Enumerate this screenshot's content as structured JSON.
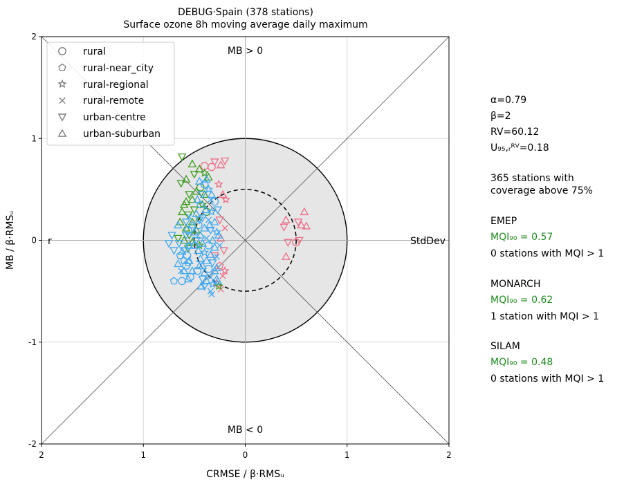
{
  "chart_data": {
    "type": "scatter",
    "title": "DEBUG·Spain (378 stations)",
    "subtitle": "Surface ozone 8h moving average daily maximum",
    "xlabel": "CRMSE / β·RMSᵤ",
    "ylabel": "MB / β·RMSᵤ",
    "xlim": [
      -2,
      2
    ],
    "ylim": [
      -2,
      2
    ],
    "x_ticks": [
      "2",
      "1",
      "0",
      "1",
      "2"
    ],
    "y_ticks": [
      "2",
      "1",
      "0",
      "-1",
      "-2"
    ],
    "grid": true,
    "annotations": {
      "top": "MB > 0",
      "bottom": "MB < 0",
      "left": "r",
      "right": "StdDev"
    },
    "target_circle_radius": 1,
    "dashed_circle_radius": 0.5,
    "legend_position": "upper left",
    "legend": [
      {
        "label": "rural",
        "marker": "circle"
      },
      {
        "label": "rural-near_city",
        "marker": "pentagon"
      },
      {
        "label": "rural-regional",
        "marker": "star"
      },
      {
        "label": "rural-remote",
        "marker": "x"
      },
      {
        "label": "urban-centre",
        "marker": "triangle-down"
      },
      {
        "label": "urban-suburban",
        "marker": "triangle-up"
      }
    ],
    "series": [
      {
        "name": "EMEP",
        "color": "#ec6e86",
        "points": [
          {
            "x": -0.2,
            "y": 0.78,
            "m": "triangle-down"
          },
          {
            "x": -0.24,
            "y": 0.74,
            "m": "triangle-up"
          },
          {
            "x": -0.3,
            "y": 0.77,
            "m": "triangle-down"
          },
          {
            "x": -0.33,
            "y": 0.72,
            "m": "circle"
          },
          {
            "x": -0.4,
            "y": 0.73,
            "m": "circle"
          },
          {
            "x": -0.26,
            "y": 0.55,
            "m": "star"
          },
          {
            "x": -0.22,
            "y": 0.45,
            "m": "triangle-up"
          },
          {
            "x": -0.19,
            "y": 0.4,
            "m": "star"
          },
          {
            "x": -0.25,
            "y": 0.2,
            "m": "triangle-down"
          },
          {
            "x": -0.2,
            "y": 0.12,
            "m": "x"
          },
          {
            "x": -0.24,
            "y": 0.02,
            "m": "triangle-up"
          },
          {
            "x": -0.21,
            "y": -0.1,
            "m": "triangle-down"
          },
          {
            "x": -0.25,
            "y": -0.25,
            "m": "pentagon"
          },
          {
            "x": -0.22,
            "y": -0.35,
            "m": "x"
          },
          {
            "x": -0.28,
            "y": -0.42,
            "m": "triangle-up"
          },
          {
            "x": -0.24,
            "y": -0.48,
            "m": "x"
          },
          {
            "x": -0.2,
            "y": -0.3,
            "m": "star"
          },
          {
            "x": -0.3,
            "y": -0.15,
            "m": "triangle-down"
          },
          {
            "x": 0.4,
            "y": 0.2,
            "m": "triangle-up"
          },
          {
            "x": 0.52,
            "y": 0.18,
            "m": "triangle-down"
          },
          {
            "x": 0.55,
            "y": 0.15,
            "m": "triangle-up"
          },
          {
            "x": 0.58,
            "y": 0.28,
            "m": "triangle-up"
          },
          {
            "x": 0.6,
            "y": 0.14,
            "m": "triangle-up"
          },
          {
            "x": 0.38,
            "y": 0.13,
            "m": "triangle-down"
          },
          {
            "x": 0.53,
            "y": 0.0,
            "m": "triangle-down"
          },
          {
            "x": 0.5,
            "y": -0.02,
            "m": "circle"
          },
          {
            "x": 0.42,
            "y": -0.02,
            "m": "triangle-down"
          },
          {
            "x": 0.4,
            "y": -0.16,
            "m": "triangle-up"
          }
        ]
      },
      {
        "name": "MONARCH",
        "color": "#3a9c1e",
        "points": [
          {
            "x": -0.62,
            "y": 0.82,
            "m": "triangle-down"
          },
          {
            "x": -0.52,
            "y": 0.75,
            "m": "triangle-up"
          },
          {
            "x": -0.45,
            "y": 0.7,
            "m": "triangle-up"
          },
          {
            "x": -0.5,
            "y": 0.65,
            "m": "triangle-down"
          },
          {
            "x": -0.4,
            "y": 0.66,
            "m": "star"
          },
          {
            "x": -0.36,
            "y": 0.62,
            "m": "triangle-up"
          },
          {
            "x": -0.63,
            "y": 0.56,
            "m": "triangle-down"
          },
          {
            "x": -0.58,
            "y": 0.6,
            "m": "triangle-up"
          },
          {
            "x": -0.44,
            "y": 0.52,
            "m": "circle"
          },
          {
            "x": -0.48,
            "y": 0.48,
            "m": "triangle-up"
          },
          {
            "x": -0.55,
            "y": 0.45,
            "m": "triangle-down"
          },
          {
            "x": -0.52,
            "y": 0.4,
            "m": "triangle-up"
          },
          {
            "x": -0.58,
            "y": 0.38,
            "m": "triangle-up"
          },
          {
            "x": -0.6,
            "y": 0.35,
            "m": "triangle-up"
          },
          {
            "x": -0.42,
            "y": 0.35,
            "m": "star"
          },
          {
            "x": -0.5,
            "y": 0.3,
            "m": "triangle-down"
          },
          {
            "x": -0.62,
            "y": 0.28,
            "m": "triangle-up"
          },
          {
            "x": -0.56,
            "y": 0.25,
            "m": "triangle-down"
          },
          {
            "x": -0.46,
            "y": 0.22,
            "m": "x"
          },
          {
            "x": -0.52,
            "y": 0.18,
            "m": "triangle-up"
          },
          {
            "x": -0.64,
            "y": 0.18,
            "m": "triangle-up"
          },
          {
            "x": -0.58,
            "y": 0.12,
            "m": "triangle-up"
          },
          {
            "x": -0.48,
            "y": 0.1,
            "m": "triangle-up"
          },
          {
            "x": -0.55,
            "y": 0.05,
            "m": "triangle-down"
          },
          {
            "x": -0.66,
            "y": 0.02,
            "m": "triangle-down"
          },
          {
            "x": -0.6,
            "y": 0.0,
            "m": "triangle-up"
          },
          {
            "x": -0.52,
            "y": -0.02,
            "m": "triangle-up"
          },
          {
            "x": -0.45,
            "y": -0.05,
            "m": "star"
          },
          {
            "x": -0.56,
            "y": -0.08,
            "m": "triangle-down"
          },
          {
            "x": -0.4,
            "y": 0.45,
            "m": "triangle-up"
          },
          {
            "x": -0.38,
            "y": 0.28,
            "m": "circle"
          },
          {
            "x": -0.26,
            "y": -0.45,
            "m": "star"
          }
        ]
      },
      {
        "name": "SILAM",
        "color": "#3fa8f0",
        "points": [
          {
            "x": -0.45,
            "y": 0.58,
            "m": "triangle-up"
          },
          {
            "x": -0.4,
            "y": 0.55,
            "m": "circle"
          },
          {
            "x": -0.36,
            "y": 0.5,
            "m": "star"
          },
          {
            "x": -0.42,
            "y": 0.45,
            "m": "triangle-down"
          },
          {
            "x": -0.47,
            "y": 0.4,
            "m": "triangle-up"
          },
          {
            "x": -0.34,
            "y": 0.4,
            "m": "x"
          },
          {
            "x": -0.3,
            "y": 0.38,
            "m": "circle"
          },
          {
            "x": -0.44,
            "y": 0.35,
            "m": "pentagon"
          },
          {
            "x": -0.39,
            "y": 0.3,
            "m": "triangle-up"
          },
          {
            "x": -0.33,
            "y": 0.28,
            "m": "star"
          },
          {
            "x": -0.48,
            "y": 0.26,
            "m": "triangle-up"
          },
          {
            "x": -0.42,
            "y": 0.22,
            "m": "triangle-down"
          },
          {
            "x": -0.36,
            "y": 0.2,
            "m": "x"
          },
          {
            "x": -0.3,
            "y": 0.18,
            "m": "triangle-up"
          },
          {
            "x": -0.46,
            "y": 0.15,
            "m": "circle"
          },
          {
            "x": -0.4,
            "y": 0.12,
            "m": "triangle-up"
          },
          {
            "x": -0.34,
            "y": 0.1,
            "m": "triangle-down"
          },
          {
            "x": -0.28,
            "y": 0.08,
            "m": "star"
          },
          {
            "x": -0.5,
            "y": 0.08,
            "m": "triangle-up"
          },
          {
            "x": -0.44,
            "y": 0.05,
            "m": "triangle-up"
          },
          {
            "x": -0.38,
            "y": 0.02,
            "m": "x"
          },
          {
            "x": -0.32,
            "y": 0.0,
            "m": "triangle-up"
          },
          {
            "x": -0.48,
            "y": 0.0,
            "m": "triangle-down"
          },
          {
            "x": -0.42,
            "y": -0.03,
            "m": "triangle-up"
          },
          {
            "x": -0.36,
            "y": -0.05,
            "m": "circle"
          },
          {
            "x": -0.3,
            "y": -0.07,
            "m": "triangle-up"
          },
          {
            "x": -0.55,
            "y": -0.06,
            "m": "triangle-down"
          },
          {
            "x": -0.46,
            "y": -0.1,
            "m": "triangle-up"
          },
          {
            "x": -0.4,
            "y": -0.12,
            "m": "star"
          },
          {
            "x": -0.34,
            "y": -0.14,
            "m": "triangle-up"
          },
          {
            "x": -0.28,
            "y": -0.16,
            "m": "x"
          },
          {
            "x": -0.44,
            "y": -0.18,
            "m": "triangle-up"
          },
          {
            "x": -0.38,
            "y": -0.2,
            "m": "triangle-up"
          },
          {
            "x": -0.32,
            "y": -0.22,
            "m": "triangle-down"
          },
          {
            "x": -0.42,
            "y": -0.25,
            "m": "triangle-up"
          },
          {
            "x": -0.36,
            "y": -0.28,
            "m": "circle"
          },
          {
            "x": -0.3,
            "y": -0.3,
            "m": "triangle-up"
          },
          {
            "x": -0.4,
            "y": -0.32,
            "m": "triangle-up"
          },
          {
            "x": -0.34,
            "y": -0.36,
            "m": "x"
          },
          {
            "x": -0.28,
            "y": -0.38,
            "m": "triangle-up"
          },
          {
            "x": -0.38,
            "y": -0.4,
            "m": "triangle-up"
          },
          {
            "x": -0.32,
            "y": -0.43,
            "m": "star"
          },
          {
            "x": -0.34,
            "y": -0.5,
            "m": "x"
          },
          {
            "x": -0.33,
            "y": -0.53,
            "m": "x"
          },
          {
            "x": -0.56,
            "y": -0.22,
            "m": "pentagon"
          },
          {
            "x": -0.54,
            "y": -0.36,
            "m": "circle"
          },
          {
            "x": -0.6,
            "y": -0.1,
            "m": "triangle-down"
          },
          {
            "x": -0.56,
            "y": 0.1,
            "m": "circle"
          },
          {
            "x": -0.55,
            "y": -0.2,
            "m": "triangle-up"
          },
          {
            "x": -0.52,
            "y": -0.3,
            "m": "triangle-up"
          },
          {
            "x": -0.57,
            "y": -0.15,
            "m": "circle"
          },
          {
            "x": -0.47,
            "y": -0.3,
            "m": "circle"
          },
          {
            "x": -0.45,
            "y": -0.25,
            "m": "triangle-up"
          },
          {
            "x": -0.5,
            "y": -0.05,
            "m": "pentagon"
          },
          {
            "x": -0.52,
            "y": 0.15,
            "m": "triangle-up"
          },
          {
            "x": -0.58,
            "y": 0.05,
            "m": "triangle-down"
          },
          {
            "x": -0.56,
            "y": -0.38,
            "m": "triangle-up"
          },
          {
            "x": -0.6,
            "y": -0.3,
            "m": "triangle-up"
          },
          {
            "x": -0.65,
            "y": -0.03,
            "m": "triangle-down"
          },
          {
            "x": -0.7,
            "y": -0.1,
            "m": "triangle-down"
          },
          {
            "x": -0.72,
            "y": 0.05,
            "m": "triangle-down"
          },
          {
            "x": -0.64,
            "y": -0.15,
            "m": "pentagon"
          },
          {
            "x": -0.6,
            "y": -0.2,
            "m": "pentagon"
          },
          {
            "x": -0.66,
            "y": 0.15,
            "m": "triangle-up"
          },
          {
            "x": -0.75,
            "y": -0.03,
            "m": "triangle-down"
          },
          {
            "x": -0.58,
            "y": -0.25,
            "m": "circle"
          },
          {
            "x": -0.55,
            "y": -0.05,
            "m": "triangle-up"
          },
          {
            "x": -0.62,
            "y": -0.4,
            "m": "circle"
          },
          {
            "x": -0.7,
            "y": -0.4,
            "m": "pentagon"
          },
          {
            "x": -0.63,
            "y": -0.3,
            "m": "x"
          },
          {
            "x": -0.66,
            "y": -0.23,
            "m": "triangle-up"
          },
          {
            "x": -0.55,
            "y": 0.23,
            "m": "x"
          },
          {
            "x": -0.42,
            "y": -0.38,
            "m": "triangle-down"
          },
          {
            "x": -0.28,
            "y": -0.27,
            "m": "triangle-up"
          },
          {
            "x": -0.45,
            "y": 0.2,
            "m": "triangle-down"
          },
          {
            "x": -0.35,
            "y": 0.15,
            "m": "triangle-up"
          },
          {
            "x": -0.33,
            "y": 0.45,
            "m": "triangle-up"
          },
          {
            "x": -0.38,
            "y": 0.6,
            "m": "triangle-up"
          },
          {
            "x": -0.27,
            "y": 0.3,
            "m": "triangle-down"
          },
          {
            "x": -0.26,
            "y": 0.05,
            "m": "triangle-up"
          },
          {
            "x": -0.25,
            "y": -0.05,
            "m": "x"
          },
          {
            "x": -0.27,
            "y": -0.4,
            "m": "triangle-up"
          },
          {
            "x": -0.4,
            "y": -0.45,
            "m": "triangle-down"
          },
          {
            "x": -0.62,
            "y": -0.11,
            "m": "triangle-up"
          },
          {
            "x": -0.58,
            "y": 0.18,
            "m": "triangle-down"
          },
          {
            "x": -0.43,
            "y": -0.45,
            "m": "triangle-up"
          }
        ]
      }
    ]
  },
  "side_panel": {
    "alpha": "α=0.79",
    "beta": "β=2",
    "rv": "RV=60.12",
    "u95": "U₉₅,ᵣᴿⱽ=0.18",
    "coverage_line1": "365 stations with",
    "coverage_line2": "coverage above 75%",
    "models": [
      {
        "name": "EMEP",
        "mqi": "MQI₉₀ = 0.57",
        "stations": "0 stations with MQI > 1"
      },
      {
        "name": "MONARCH",
        "mqi": "MQI₉₀ = 0.62",
        "stations": "1 station with MQI > 1"
      },
      {
        "name": "SILAM",
        "mqi": "MQI₉₀ = 0.48",
        "stations": "0 stations with MQI > 1"
      }
    ]
  }
}
